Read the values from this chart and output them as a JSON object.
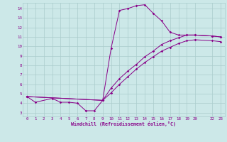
{
  "xlabel": "Windchill (Refroidissement éolien,°C)",
  "bg_color": "#cce8e8",
  "line_color": "#880088",
  "grid_color": "#aacccc",
  "xlim": [
    -0.5,
    23.5
  ],
  "ylim": [
    2.6,
    14.6
  ],
  "xtick_vals": [
    0,
    1,
    2,
    3,
    4,
    5,
    6,
    7,
    8,
    9,
    10,
    11,
    12,
    13,
    14,
    15,
    16,
    17,
    18,
    19,
    20,
    22,
    23
  ],
  "ytick_vals": [
    3,
    4,
    5,
    6,
    7,
    8,
    9,
    10,
    11,
    12,
    13,
    14
  ],
  "curve1_x": [
    0,
    1,
    3,
    4,
    5,
    6,
    7,
    8,
    9,
    10,
    11,
    12,
    13,
    14,
    15,
    16,
    17,
    18,
    19,
    20,
    22,
    23
  ],
  "curve1_y": [
    4.7,
    4.1,
    4.5,
    4.1,
    4.1,
    4.0,
    3.2,
    3.2,
    4.3,
    9.8,
    13.8,
    14.0,
    14.3,
    14.4,
    13.5,
    12.7,
    11.5,
    11.2,
    11.2,
    11.2,
    11.1,
    11.0
  ],
  "curve2_x": [
    0,
    9,
    10,
    11,
    12,
    13,
    14,
    15,
    16,
    17,
    18,
    19,
    20,
    22,
    23
  ],
  "curve2_y": [
    4.7,
    4.3,
    5.6,
    6.6,
    7.4,
    8.1,
    8.9,
    9.5,
    10.2,
    10.6,
    10.9,
    11.2,
    11.2,
    11.1,
    11.0
  ],
  "curve3_x": [
    0,
    9,
    10,
    11,
    12,
    13,
    14,
    15,
    16,
    17,
    18,
    19,
    20,
    22,
    23
  ],
  "curve3_y": [
    4.7,
    4.3,
    5.1,
    6.0,
    6.8,
    7.6,
    8.3,
    8.9,
    9.5,
    9.9,
    10.3,
    10.6,
    10.7,
    10.6,
    10.5
  ]
}
